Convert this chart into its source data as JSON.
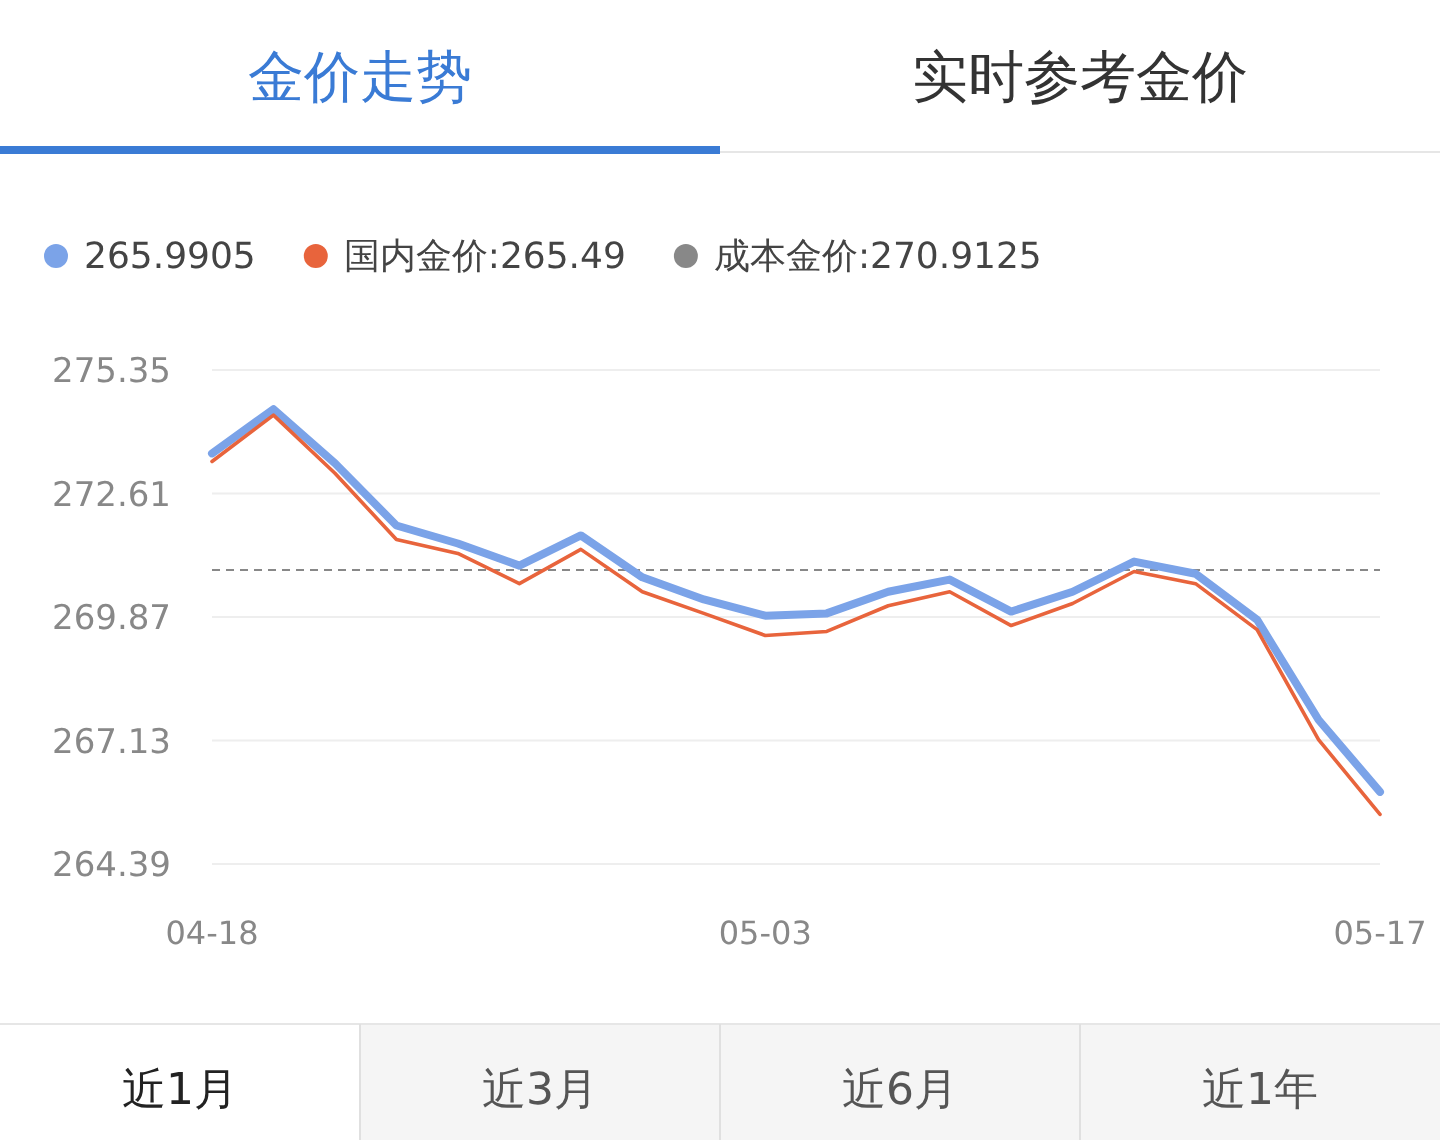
{
  "chart_data": {
    "type": "line",
    "categories": [
      "04-18",
      null,
      null,
      null,
      null,
      null,
      null,
      null,
      null,
      "05-03",
      null,
      null,
      null,
      null,
      null,
      null,
      null,
      null,
      null,
      "05-17"
    ],
    "series": [
      {
        "color": "#7ba3e8",
        "values": [
          273.5,
          274.48,
          273.28,
          271.9,
          271.5,
          271.01,
          271.68,
          270.75,
          270.26,
          269.9,
          269.95,
          270.43,
          270.7,
          269.99,
          270.43,
          271.1,
          270.83,
          269.81,
          267.59,
          265.99
        ]
      },
      {
        "name": "国内金价:265.49",
        "color": "#e8643c",
        "values": [
          273.32,
          274.35,
          273.06,
          271.59,
          271.28,
          270.61,
          271.37,
          270.43,
          269.95,
          269.46,
          269.55,
          270.12,
          270.43,
          269.68,
          270.17,
          270.88,
          270.61,
          269.59,
          267.15,
          265.49
        ]
      }
    ],
    "ref_lines": [
      {
        "axis": "y",
        "value": 270.9125,
        "label": "成本金价:270.9125",
        "color": "#888888",
        "line_style": "dashed"
      }
    ],
    "ylim": [
      264.39,
      275.35
    ],
    "yticks": [
      264.39,
      267.13,
      269.87,
      272.61,
      275.35
    ],
    "grid": "y",
    "legend": "top",
    "marker": "none",
    "annotations": [
      "金价走势",
      "实时参考金价",
      "近1月",
      "近3月",
      "近6月",
      "近1年",
      "265.9905"
    ]
  }
}
